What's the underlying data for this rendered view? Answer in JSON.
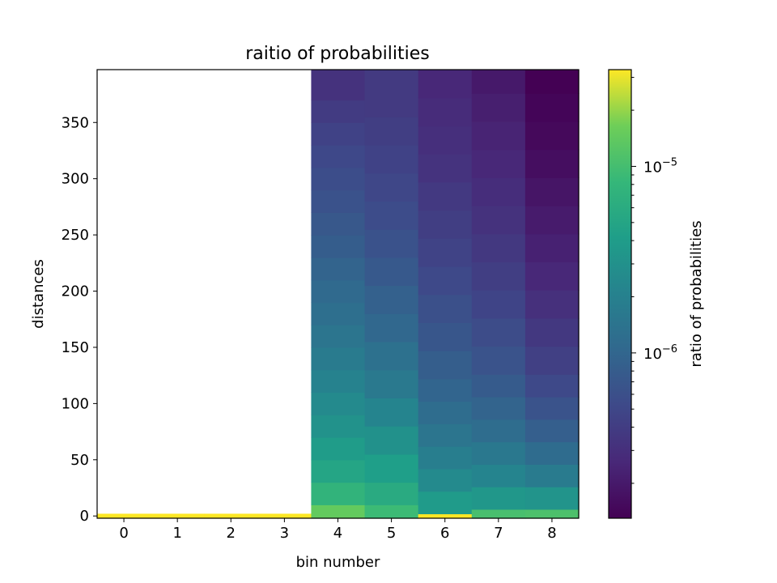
{
  "chart_data": {
    "type": "heatmap",
    "title": "raitio of probabilities",
    "xlabel": "bin number",
    "ylabel": "distances",
    "colorbar_label": "ratio of probabilities",
    "colormap": "viridis",
    "colorbar_scale": "log",
    "color_range": [
      1.3e-07,
      3.3e-05
    ],
    "xlim": [
      -0.5,
      8.5
    ],
    "ylim": [
      -2,
      397
    ],
    "x_ticks": [
      "0",
      "1",
      "2",
      "3",
      "4",
      "5",
      "6",
      "7",
      "8"
    ],
    "y_ticks": [
      "0",
      "50",
      "100",
      "150",
      "200",
      "250",
      "300",
      "350"
    ],
    "y_tick_values": [
      0,
      50,
      100,
      150,
      200,
      250,
      300,
      350
    ],
    "colorbar_ticks": [
      {
        "value": 1e-05,
        "base": "10",
        "exponent": "−5"
      },
      {
        "value": 1e-06,
        "base": "10",
        "exponent": "−6"
      }
    ],
    "columns": [
      {
        "bin": 0,
        "edges": [
          -2,
          2,
          397
        ],
        "values": [
          3.3e-05,
          null
        ]
      },
      {
        "bin": 1,
        "edges": [
          -2,
          2,
          397
        ],
        "values": [
          3.3e-05,
          null
        ]
      },
      {
        "bin": 2,
        "edges": [
          -2,
          2,
          397
        ],
        "values": [
          3.3e-05,
          null
        ]
      },
      {
        "bin": 3,
        "edges": [
          -2,
          2,
          397
        ],
        "values": [
          3.3e-05,
          null
        ]
      },
      {
        "bin": 4,
        "edges": [
          -2,
          10,
          30,
          50,
          70,
          90,
          110,
          130,
          150,
          170,
          190,
          210,
          230,
          250,
          270,
          290,
          310,
          330,
          350,
          370,
          397
        ],
        "values": [
          1.45e-05,
          7.5e-06,
          5e-06,
          3.9e-06,
          3.1e-06,
          2.5e-06,
          2.05e-06,
          1.7e-06,
          1.45e-06,
          1.25e-06,
          1.08e-06,
          9.4e-07,
          8.2e-07,
          7.2e-07,
          6.4e-07,
          5.7e-07,
          5.1e-07,
          4.5e-07,
          3.9e-07,
          3.2e-07
        ]
      },
      {
        "bin": 5,
        "edges": [
          -2,
          10,
          30,
          55,
          80,
          105,
          130,
          155,
          180,
          205,
          230,
          255,
          280,
          305,
          330,
          355,
          397
        ],
        "values": [
          9e-06,
          5.8e-06,
          4.2e-06,
          3e-06,
          2.2e-06,
          1.65e-06,
          1.3e-06,
          1.05e-06,
          8.8e-07,
          7.4e-07,
          6.4e-07,
          5.6e-07,
          5e-07,
          4.5e-07,
          4.1e-07,
          3.8e-07
        ]
      },
      {
        "bin": 6,
        "edges": [
          -2,
          2,
          22,
          42,
          62,
          82,
          102,
          122,
          147,
          172,
          197,
          222,
          247,
          272,
          297,
          322,
          347,
          372,
          397
        ],
        "values": [
          3.3e-05,
          3.8e-06,
          2.5e-06,
          1.85e-06,
          1.45e-06,
          1.18e-06,
          9.8e-07,
          8.3e-07,
          7e-07,
          6e-07,
          5.2e-07,
          4.6e-07,
          4.1e-07,
          3.7e-07,
          3.3e-07,
          3e-07,
          2.8e-07,
          2.6e-07
        ]
      },
      {
        "bin": 7,
        "edges": [
          -2,
          6,
          26,
          46,
          66,
          86,
          106,
          126,
          151,
          176,
          201,
          226,
          251,
          276,
          301,
          326,
          351,
          376,
          397
        ],
        "values": [
          1.05e-05,
          3.5e-06,
          2.2e-06,
          1.6e-06,
          1.2e-06,
          9.5e-07,
          7.8e-07,
          6.5e-07,
          5.5e-07,
          4.7e-07,
          4.1e-07,
          3.6e-07,
          3.2e-07,
          2.9e-07,
          2.6e-07,
          2.4e-07,
          2.2e-07,
          2e-07
        ]
      },
      {
        "bin": 8,
        "edges": [
          -2,
          6,
          26,
          46,
          66,
          86,
          106,
          126,
          151,
          176,
          201,
          226,
          251,
          276,
          301,
          326,
          351,
          376,
          397
        ],
        "values": [
          1.1e-05,
          3.2e-06,
          1.7e-06,
          1.15e-06,
          8.5e-07,
          6.5e-07,
          5.2e-07,
          4.3e-07,
          3.6e-07,
          3.05e-07,
          2.6e-07,
          2.3e-07,
          2.05e-07,
          1.85e-07,
          1.65e-07,
          1.5e-07,
          1.4e-07,
          1.3e-07
        ]
      }
    ]
  }
}
